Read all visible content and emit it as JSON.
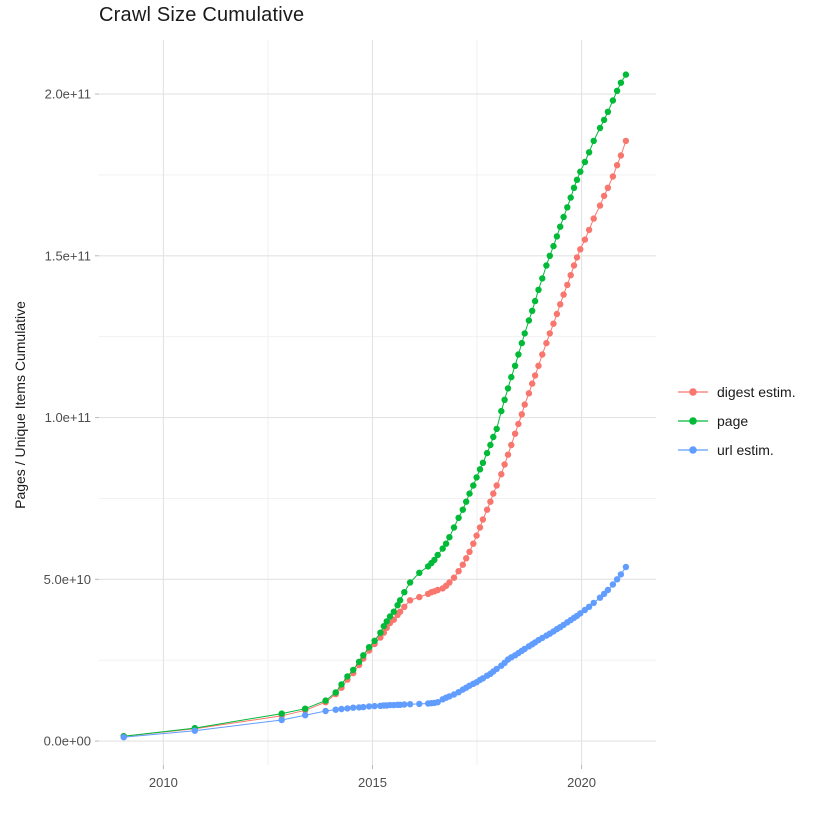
{
  "title": "Crawl Size Cumulative",
  "axes": {
    "y_label": "Pages / Unique Items Cumulative",
    "y_ticks": [
      {
        "value": 0,
        "label": "0.0e+00"
      },
      {
        "value": 50000000000.0,
        "label": "5.0e+10"
      },
      {
        "value": 100000000000.0,
        "label": "1.0e+11"
      },
      {
        "value": 150000000000.0,
        "label": "1.5e+11"
      },
      {
        "value": 200000000000.0,
        "label": "2.0e+11"
      }
    ],
    "y_minor": [
      25000000000.0,
      75000000000.0,
      125000000000.0,
      175000000000.0
    ],
    "x_ticks": [
      {
        "value": 2010,
        "label": "2010"
      },
      {
        "value": 2015,
        "label": "2015"
      },
      {
        "value": 2020,
        "label": "2020"
      }
    ],
    "x_minor": [
      2012.5,
      2017.5
    ]
  },
  "legend": {
    "entries": [
      {
        "name": "digest estim.",
        "color": "#F8766D"
      },
      {
        "name": "page",
        "color": "#00BA38"
      },
      {
        "name": "url estim.",
        "color": "#619CFF"
      }
    ]
  },
  "style": {
    "grid_major_color": "#e3e3e3",
    "grid_minor_color": "#efefef",
    "tick_mark_color": "#b8b8b8",
    "tick_label_color": "#4d4d4d",
    "point_radius": 3.2,
    "line_width": 1
  },
  "chart_data": {
    "type": "scatter",
    "title": "Crawl Size Cumulative",
    "xlabel": "",
    "ylabel": "Pages / Unique Items Cumulative",
    "x_range": [
      2008.46,
      2021.78
    ],
    "y_range": [
      -7400000000.0,
      216700000000.0
    ],
    "grid": true,
    "legend_position": "right",
    "marker": "point-with-line",
    "x": [
      2009.05,
      2010.75,
      2012.83,
      2013.39,
      2013.88,
      2014.12,
      2014.26,
      2014.4,
      2014.54,
      2014.68,
      2014.78,
      2014.92,
      2015.05,
      2015.19,
      2015.27,
      2015.34,
      2015.42,
      2015.51,
      2015.6,
      2015.66,
      2015.76,
      2015.9,
      2016.12,
      2016.33,
      2016.41,
      2016.48,
      2016.56,
      2016.68,
      2016.76,
      2016.84,
      2016.95,
      2017.06,
      2017.16,
      2017.24,
      2017.32,
      2017.41,
      2017.49,
      2017.57,
      2017.64,
      2017.74,
      2017.82,
      2017.89,
      2017.97,
      2018.08,
      2018.16,
      2018.24,
      2018.32,
      2018.41,
      2018.49,
      2018.57,
      2018.64,
      2018.74,
      2018.82,
      2018.89,
      2018.97,
      2019.06,
      2019.16,
      2019.24,
      2019.33,
      2019.41,
      2019.49,
      2019.57,
      2019.66,
      2019.74,
      2019.82,
      2019.89,
      2019.97,
      2020.08,
      2020.18,
      2020.29,
      2020.44,
      2020.54,
      2020.63,
      2020.75,
      2020.85,
      2020.94,
      2021.06
    ],
    "series": [
      {
        "name": "digest estim.",
        "color": "#F8766D",
        "values": [
          1500000000.0,
          3800000000.0,
          7800000000.0,
          9500000000.0,
          12000000000.0,
          14500000000.0,
          16500000000.0,
          19000000000.0,
          21000000000.0,
          23500000000.0,
          25500000000.0,
          28000000000.0,
          30000000000.0,
          32000000000.0,
          33500000000.0,
          35000000000.0,
          36500000000.0,
          37500000000.0,
          39000000000.0,
          40000000000.0,
          41500000000.0,
          43500000000.0,
          44500000000.0,
          45500000000.0,
          46000000000.0,
          46300000000.0,
          46700000000.0,
          47200000000.0,
          48000000000.0,
          49000000000.0,
          50500000000.0,
          52500000000.0,
          54500000000.0,
          56500000000.0,
          58500000000.0,
          61000000000.0,
          63500000000.0,
          66000000000.0,
          68500000000.0,
          71500000000.0,
          74000000000.0,
          76500000000.0,
          79000000000.0,
          82500000000.0,
          85500000000.0,
          88500000000.0,
          91500000000.0,
          95000000000.0,
          98000000000.0,
          101000000000.0,
          104000000000.0,
          107500000000.0,
          110500000000.0,
          113000000000.0,
          116000000000.0,
          119500000000.0,
          123000000000.0,
          126000000000.0,
          129000000000.0,
          132000000000.0,
          135000000000.0,
          138000000000.0,
          141000000000.0,
          144000000000.0,
          147000000000.0,
          149500000000.0,
          152000000000.0,
          155000000000.0,
          158000000000.0,
          161500000000.0,
          165500000000.0,
          168500000000.0,
          171000000000.0,
          174500000000.0,
          178000000000.0,
          181000000000.0,
          185500000000.0
        ]
      },
      {
        "name": "page",
        "color": "#00BA38",
        "values": [
          1500000000.0,
          4000000000.0,
          8500000000.0,
          10000000000.0,
          12500000000.0,
          15000000000.0,
          17500000000.0,
          20000000000.0,
          22000000000.0,
          24500000000.0,
          26500000000.0,
          29000000000.0,
          31000000000.0,
          33500000000.0,
          35500000000.0,
          37000000000.0,
          38500000000.0,
          40000000000.0,
          42000000000.0,
          43500000000.0,
          46000000000.0,
          49000000000.0,
          52000000000.0,
          54000000000.0,
          55000000000.0,
          56000000000.0,
          57500000000.0,
          59500000000.0,
          61000000000.0,
          63000000000.0,
          66000000000.0,
          69000000000.0,
          71500000000.0,
          74000000000.0,
          76500000000.0,
          79000000000.0,
          81500000000.0,
          84000000000.0,
          86000000000.0,
          89000000000.0,
          91500000000.0,
          94000000000.0,
          96500000000.0,
          102000000000.0,
          105500000000.0,
          109000000000.0,
          112500000000.0,
          116000000000.0,
          119500000000.0,
          123000000000.0,
          126000000000.0,
          130000000000.0,
          133000000000.0,
          136000000000.0,
          139500000000.0,
          143000000000.0,
          147000000000.0,
          150000000000.0,
          153000000000.0,
          156000000000.0,
          159000000000.0,
          162000000000.0,
          165000000000.0,
          168000000000.0,
          171000000000.0,
          173500000000.0,
          176000000000.0,
          179000000000.0,
          182000000000.0,
          185500000000.0,
          189500000000.0,
          192000000000.0,
          194500000000.0,
          198000000000.0,
          201000000000.0,
          203500000000.0,
          206000000000.0
        ]
      },
      {
        "name": "url estim.",
        "color": "#619CFF",
        "values": [
          1200000000.0,
          3200000000.0,
          6500000000.0,
          8000000000.0,
          9300000000.0,
          9700000000.0,
          9900000000.0,
          10100000000.0,
          10300000000.0,
          10400000000.0,
          10500000000.0,
          10700000000.0,
          10800000000.0,
          10900000000.0,
          11000000000.0,
          11000000000.0,
          11100000000.0,
          11100000000.0,
          11200000000.0,
          11200000000.0,
          11300000000.0,
          11400000000.0,
          11500000000.0,
          11600000000.0,
          11700000000.0,
          11800000000.0,
          12000000000.0,
          12900000000.0,
          13400000000.0,
          13800000000.0,
          14400000000.0,
          15100000000.0,
          15900000000.0,
          16500000000.0,
          17100000000.0,
          17700000000.0,
          18200000000.0,
          18900000000.0,
          19400000000.0,
          20200000000.0,
          20800000000.0,
          21500000000.0,
          22300000000.0,
          23300000000.0,
          24200000000.0,
          25200000000.0,
          25900000000.0,
          26500000000.0,
          27200000000.0,
          27900000000.0,
          28500000000.0,
          29300000000.0,
          29900000000.0,
          30500000000.0,
          31200000000.0,
          31900000000.0,
          32600000000.0,
          33200000000.0,
          33900000000.0,
          34600000000.0,
          35200000000.0,
          35900000000.0,
          36700000000.0,
          37400000000.0,
          38100000000.0,
          38700000000.0,
          39500000000.0,
          40500000000.0,
          41500000000.0,
          42700000000.0,
          44300000000.0,
          45500000000.0,
          46700000000.0,
          48400000000.0,
          50000000000.0,
          51500000000.0,
          53800000000.0
        ]
      }
    ]
  }
}
